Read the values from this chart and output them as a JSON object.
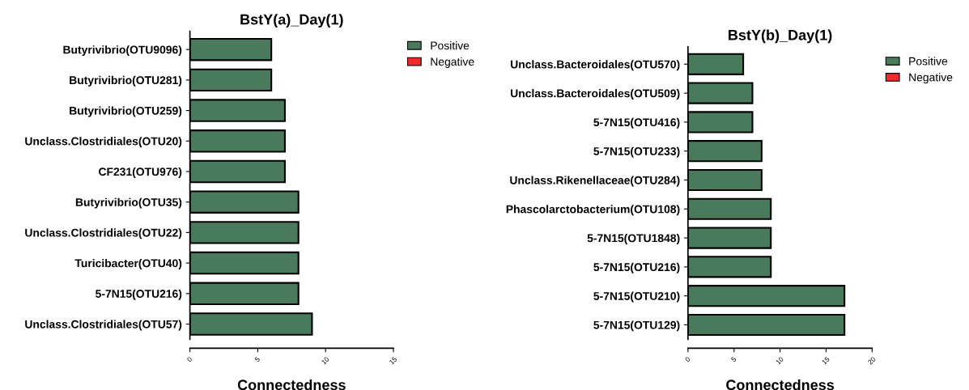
{
  "chart_data": [
    {
      "type": "bar",
      "orientation": "horizontal",
      "title": "BstY(a)_Day(1)",
      "xlabel": "Connectedness",
      "categories": [
        "Butyrivibrio(OTU9096)",
        "Butyrivibrio(OTU281)",
        "Butyrivibrio(OTU259)",
        "Unclass.Clostridiales(OTU20)",
        "CF231(OTU976)",
        "Butyrivibrio(OTU35)",
        "Unclass.Clostridiales(OTU22)",
        "Turicibacter(OTU40)",
        "5-7N15(OTU216)",
        "Unclass.Clostridiales(OTU57)"
      ],
      "series": [
        {
          "name": "Positive",
          "color": "#4a7a5c",
          "values": [
            6,
            6,
            7,
            7,
            7,
            8,
            8,
            8,
            8,
            9
          ]
        },
        {
          "name": "Negative",
          "color": "#ee2a2a",
          "values": [
            null,
            null,
            null,
            null,
            null,
            null,
            null,
            null,
            null,
            null
          ]
        }
      ],
      "xlim": [
        0,
        15
      ],
      "xticks": [
        0,
        5,
        10,
        15
      ],
      "grid": false,
      "legend": "top right"
    },
    {
      "type": "bar",
      "orientation": "horizontal",
      "title": "BstY(b)_Day(1)",
      "xlabel": "Connectedness",
      "categories": [
        "Unclass.Bacteroidales(OTU570)",
        "Unclass.Bacteroidales(OTU509)",
        "5-7N15(OTU416)",
        "5-7N15(OTU233)",
        "Unclass.Rikenellaceae(OTU284)",
        "Phascolarctobacterium(OTU108)",
        "5-7N15(OTU1848)",
        "5-7N15(OTU216)",
        "5-7N15(OTU210)",
        "5-7N15(OTU129)"
      ],
      "series": [
        {
          "name": "Positive",
          "color": "#4a7a5c",
          "values": [
            6,
            7,
            7,
            8,
            8,
            9,
            9,
            9,
            17,
            17
          ]
        },
        {
          "name": "Negative",
          "color": "#ee2a2a",
          "values": [
            null,
            null,
            null,
            null,
            null,
            null,
            null,
            null,
            null,
            null
          ]
        }
      ],
      "xlim": [
        0,
        20
      ],
      "xticks": [
        0,
        5,
        10,
        15,
        20
      ],
      "grid": false,
      "legend": "top right"
    }
  ]
}
